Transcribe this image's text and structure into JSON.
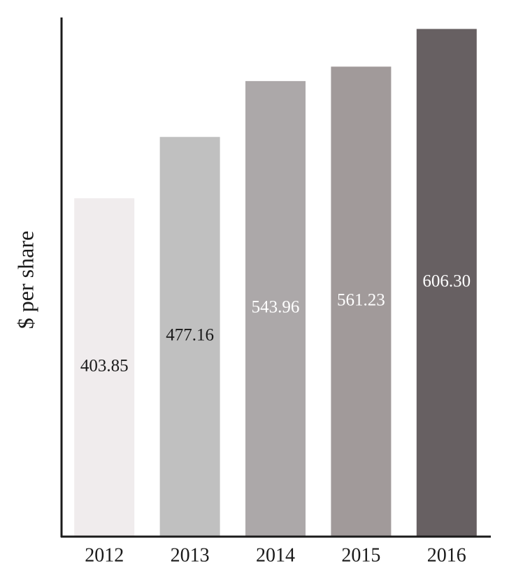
{
  "chart_data": {
    "type": "bar",
    "y_label": "$ per share",
    "categories": [
      "2012",
      "2013",
      "2014",
      "2015",
      "2016"
    ],
    "values": [
      403.85,
      477.16,
      543.96,
      561.23,
      606.3
    ],
    "value_labels": [
      "403.85",
      "477.16",
      "543.96",
      "561.23",
      "606.30"
    ],
    "colors": [
      "#f0eced",
      "#c0c0c0",
      "#aca8a9",
      "#a19a9a",
      "#676062"
    ],
    "ylim": [
      0,
      620
    ]
  }
}
